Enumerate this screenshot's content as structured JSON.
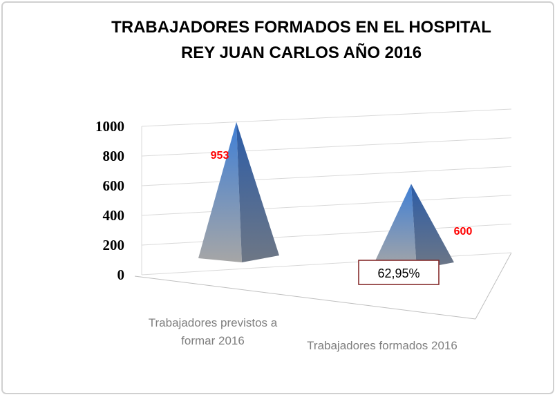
{
  "chart_data": {
    "type": "pyramid3d",
    "title": [
      "TRABAJADORES FORMADOS EN EL HOSPITAL",
      "REY JUAN CARLOS AÑO 2016"
    ],
    "categories": [
      "Trabajadores previstos a formar 2016",
      "Trabajadores formados 2016"
    ],
    "values": [
      953,
      600
    ],
    "value_label_color": "#ff0000",
    "color": "#4f81bd",
    "ylim": [
      0,
      1000
    ],
    "yticks": [
      0,
      200,
      400,
      600,
      800,
      1000
    ],
    "grid": true,
    "annotations": [
      {
        "text": "62,95%"
      }
    ]
  }
}
